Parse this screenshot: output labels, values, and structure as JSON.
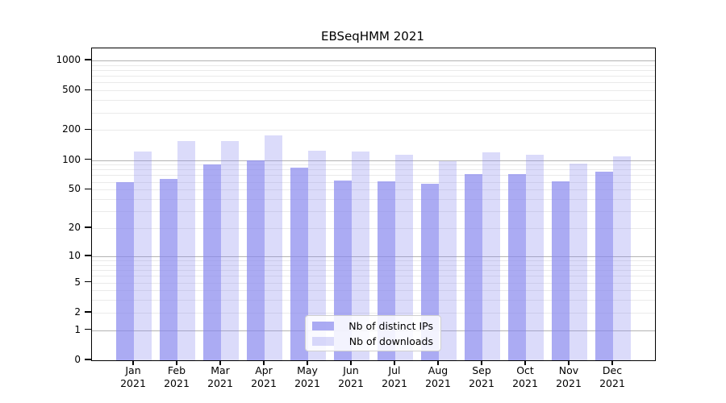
{
  "chart": {
    "title": "EBSeqHMM 2021",
    "colors": {
      "bar_base": "#8888ee",
      "ip_alpha": 0.7,
      "dl_alpha": 0.3,
      "grid_major": "#b3b3b3",
      "grid_minor": "#eaeaea",
      "spine": "#000000",
      "background": "#ffffff",
      "legend_border": "#d0d0d0"
    },
    "legend": {
      "items": [
        {
          "label": "Nb of distinct IPs",
          "series": 0
        },
        {
          "label": "Nb of downloads",
          "series": 1
        }
      ]
    }
  },
  "chart_data": {
    "type": "bar",
    "title": "EBSeqHMM 2021",
    "categories": [
      "Jan 2021",
      "Feb 2021",
      "Mar 2021",
      "Apr 2021",
      "May 2021",
      "Jun 2021",
      "Jul 2021",
      "Aug 2021",
      "Sep 2021",
      "Oct 2021",
      "Nov 2021",
      "Dec 2021"
    ],
    "series": [
      {
        "name": "Nb of distinct IPs",
        "values": [
          60,
          64,
          91,
          100,
          83,
          62,
          61,
          57,
          72,
          72,
          61,
          76
        ]
      },
      {
        "name": "Nb of downloads",
        "values": [
          123,
          156,
          156,
          176,
          125,
          121,
          113,
          98,
          120,
          113,
          92,
          109
        ]
      }
    ],
    "xlabel": "",
    "ylabel": "",
    "yscale": "log1p",
    "ylim": [
      0,
      1000
    ],
    "yticks": [
      0,
      1,
      2,
      5,
      10,
      20,
      50,
      100,
      200,
      500,
      1000
    ],
    "yticks_major_grid": [
      1,
      10,
      100,
      1000
    ],
    "yticks_minor_grid": [
      2,
      3,
      4,
      5,
      6,
      7,
      8,
      9,
      20,
      30,
      40,
      50,
      60,
      70,
      80,
      90,
      200,
      300,
      400,
      500,
      600,
      700,
      800,
      900
    ],
    "grid": true,
    "legend_position": "lower center"
  }
}
